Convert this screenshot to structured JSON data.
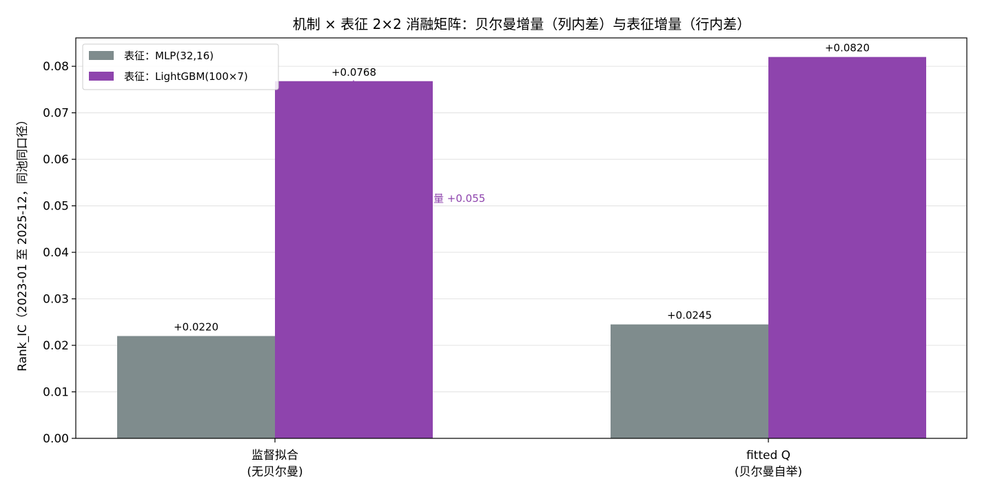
{
  "chart_data": {
    "type": "bar",
    "title": "机制 × 表征 2×2 消融矩阵：贝尔曼增量（列内差）与表征增量（行内差）",
    "xlabel": "",
    "ylabel": "Rank_IC（2023-01 至 2025-12，同池同口径）",
    "categories": [
      "监督拟合\n(无贝尔曼)",
      "fitted Q\n(贝尔曼自举)"
    ],
    "series": [
      {
        "name": "表征：MLP(32,16)",
        "values": [
          0.022,
          0.0245
        ],
        "labels": [
          "+0.0220",
          "+0.0245"
        ],
        "color": "#7f8c8d"
      },
      {
        "name": "表征：LightGBM(100×7)",
        "values": [
          0.0768,
          0.082
        ],
        "labels": [
          "+0.0768",
          "+0.0820"
        ],
        "color": "#8e44ad"
      }
    ],
    "ylim": [
      0,
      0.0861
    ],
    "yticks": [
      "0.00",
      "0.01",
      "0.02",
      "0.03",
      "0.04",
      "0.05",
      "0.06",
      "0.07",
      "0.08"
    ],
    "ytick_values": [
      0,
      0.01,
      0.02,
      0.03,
      0.04,
      0.05,
      0.06,
      0.07,
      0.08
    ],
    "grid": "y",
    "legend_position": "top-left",
    "annotation": {
      "text": "表征增量 +0.055",
      "visible_text": "量 +0.055",
      "color": "#8e44ad",
      "from_value": 0.022,
      "to_value": 0.0768,
      "category": 0
    }
  }
}
